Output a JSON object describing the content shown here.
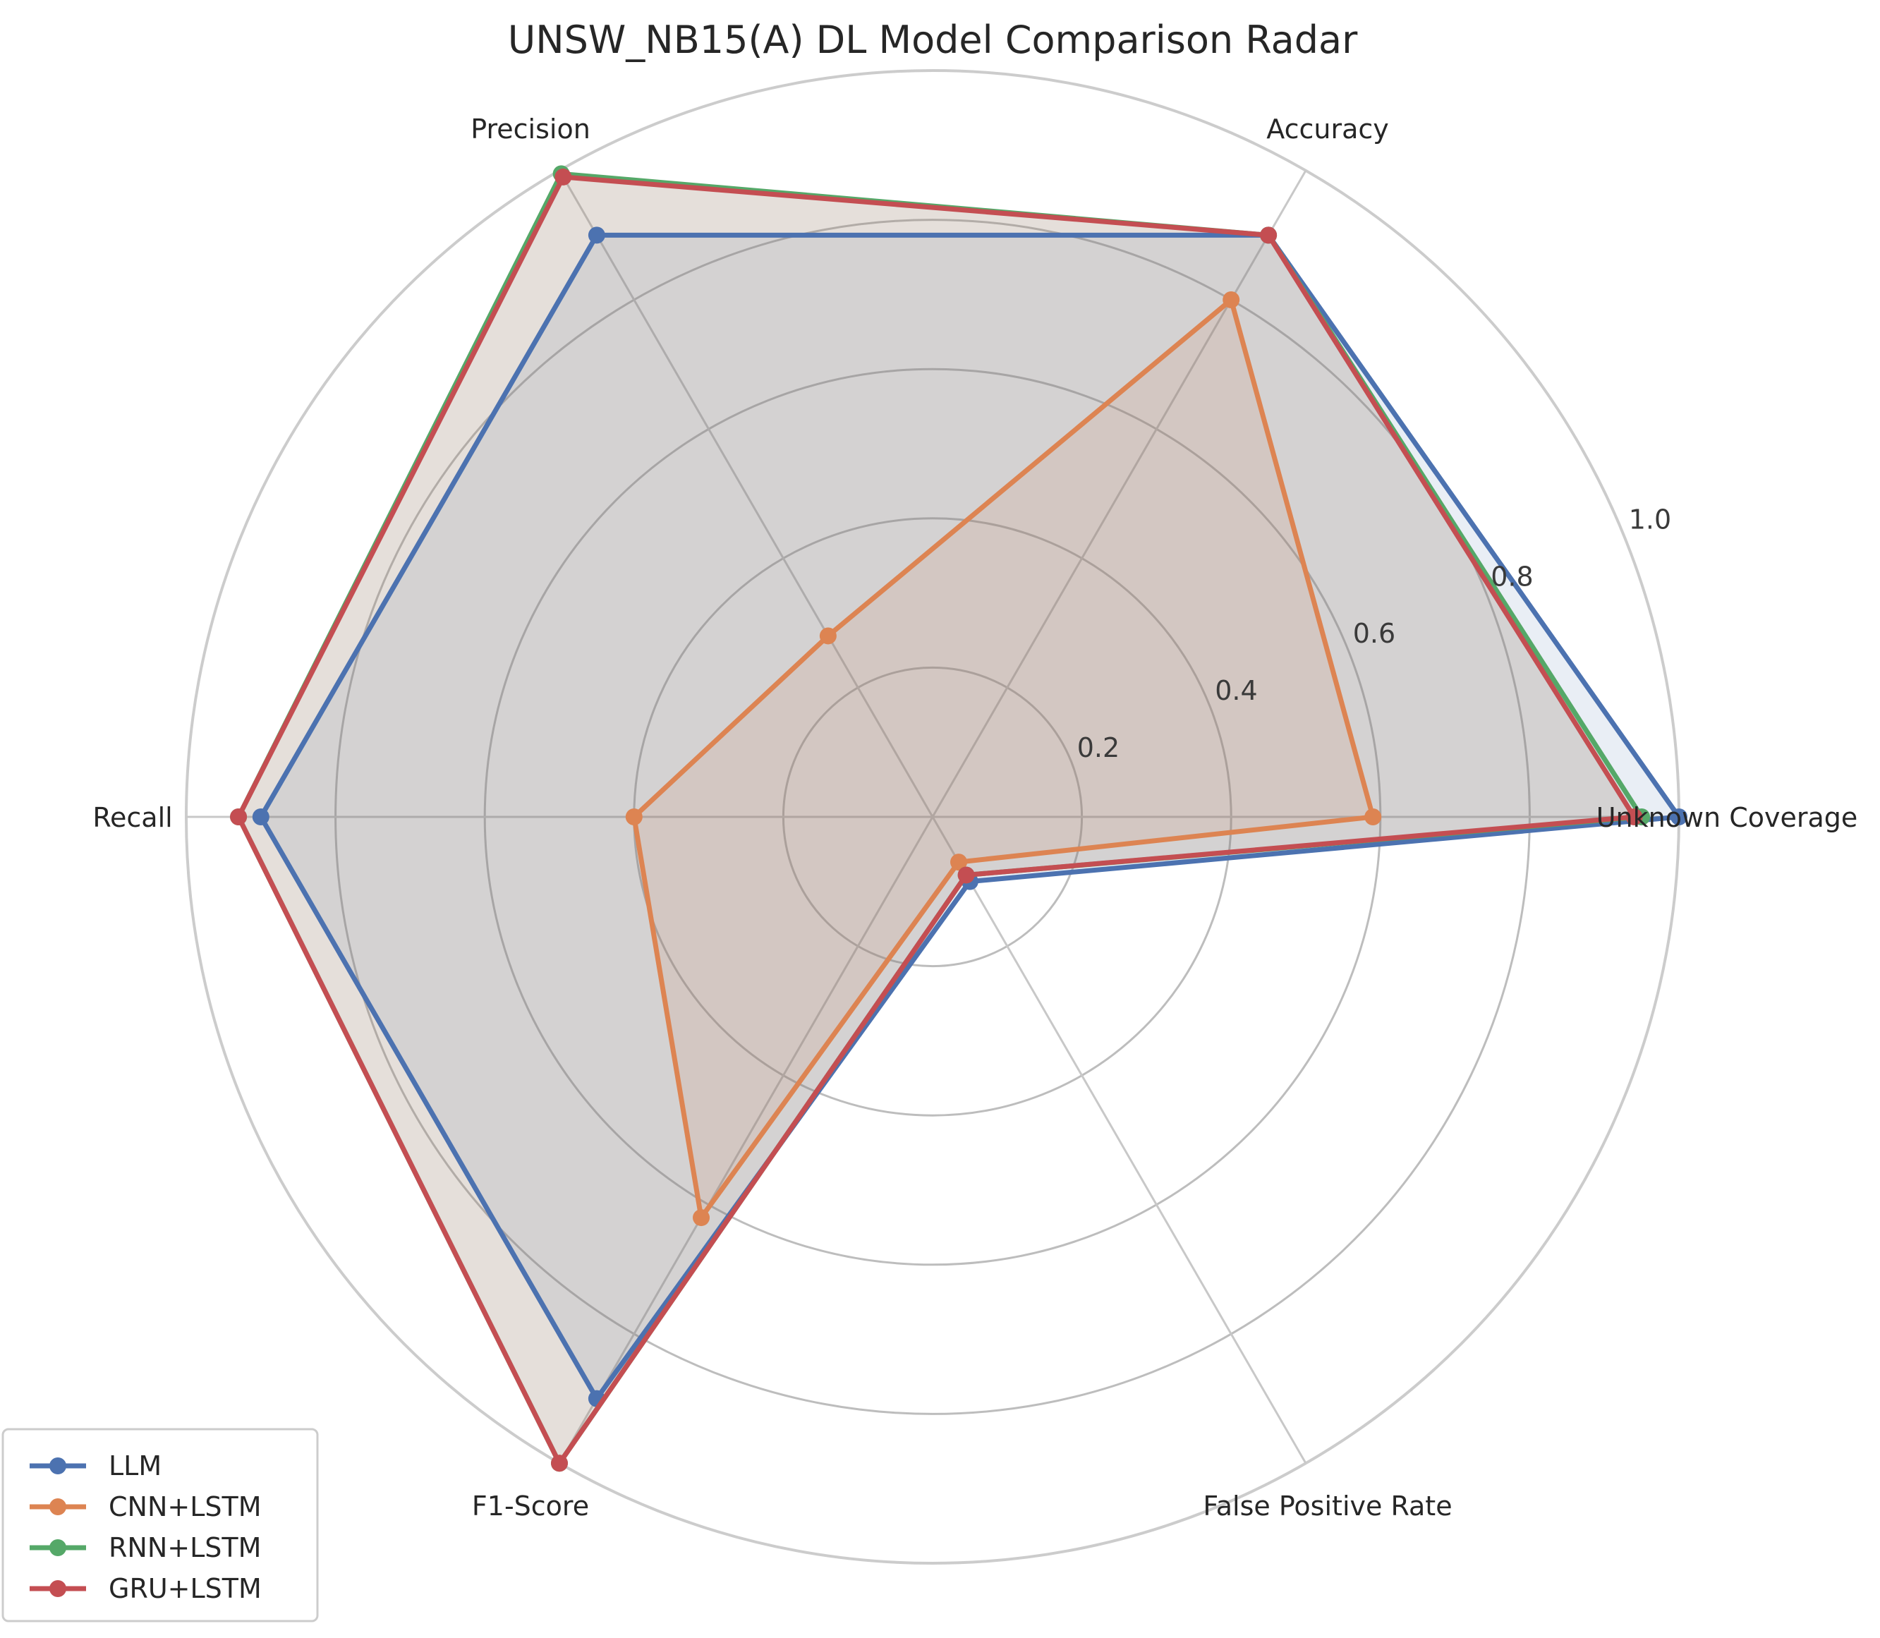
{
  "chart_data": {
    "type": "radar",
    "title": "UNSW_NB15(A) DL Model Comparison Radar",
    "axes": [
      "Unknown Coverage",
      "Accuracy",
      "Precision",
      "Recall",
      "F1-Score",
      "False Positive Rate"
    ],
    "rlim": [
      0,
      1.0
    ],
    "r_ticks": [
      "0.2",
      "0.4",
      "0.6",
      "0.8",
      "1.0"
    ],
    "grid": true,
    "legend_position": "lower-left",
    "series": [
      {
        "name": "LLM",
        "color": "#4c72b0",
        "values": [
          1.0,
          0.9,
          0.9,
          0.9,
          0.9,
          0.1
        ]
      },
      {
        "name": "CNN+LSTM",
        "color": "#dd8452",
        "values": [
          0.59,
          0.8,
          0.28,
          0.4,
          0.62,
          0.07
        ]
      },
      {
        "name": "RNN+LSTM",
        "color": "#55a868",
        "values": [
          0.95,
          0.9,
          0.995,
          0.93,
          1.0,
          0.09
        ]
      },
      {
        "name": "GRU+LSTM",
        "color": "#c44e52",
        "values": [
          0.94,
          0.9,
          0.99,
          0.93,
          1.0,
          0.09
        ]
      }
    ]
  }
}
